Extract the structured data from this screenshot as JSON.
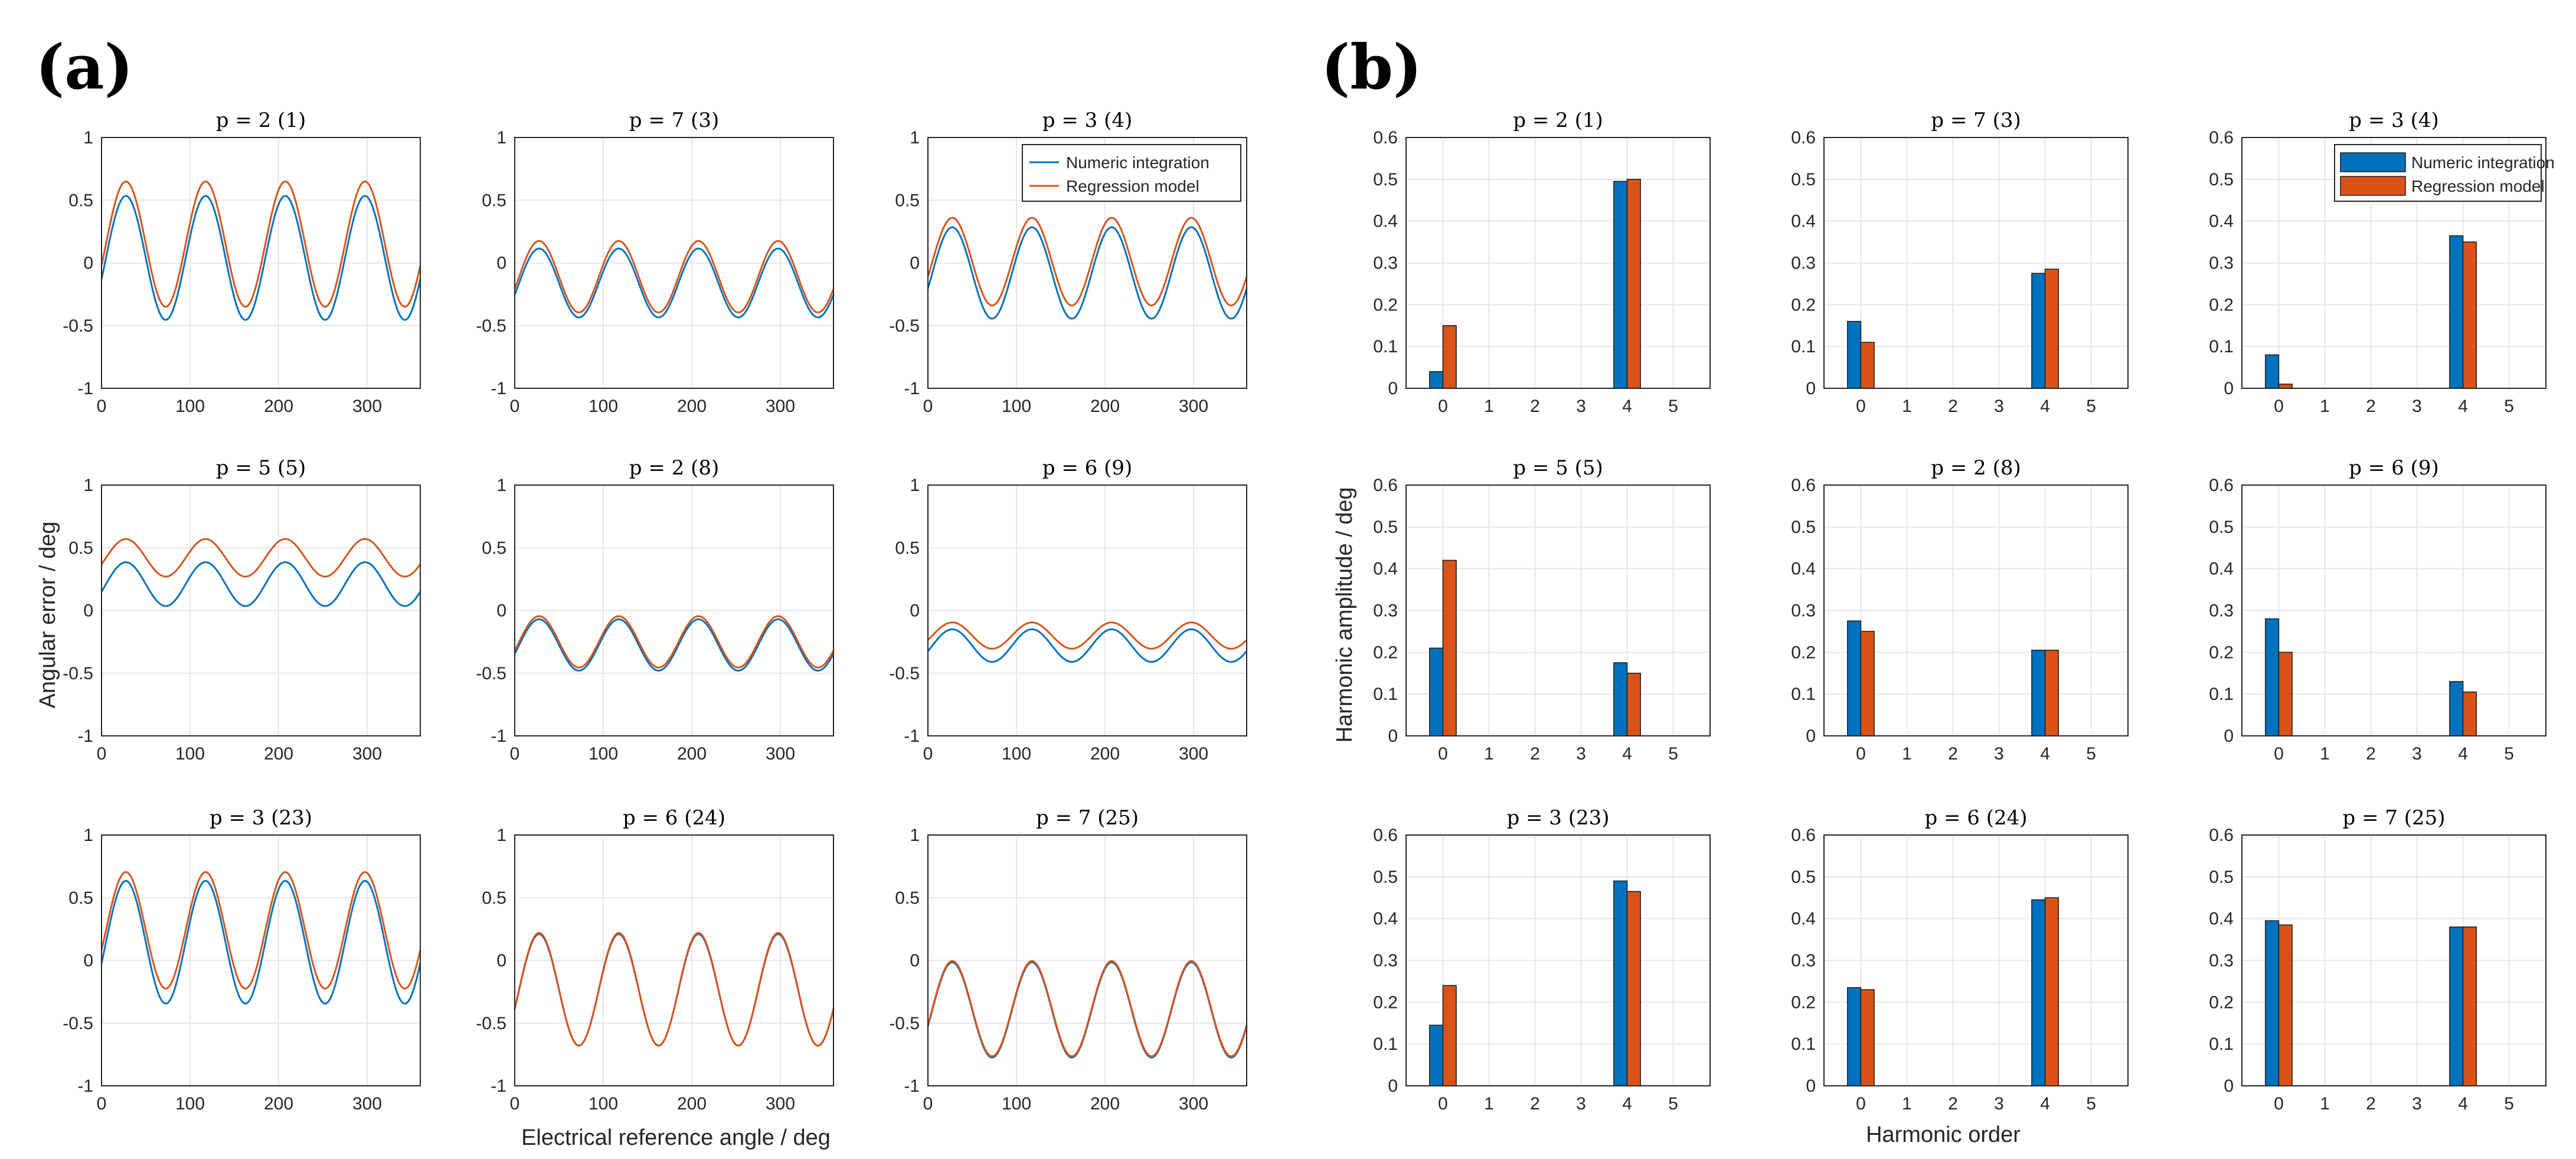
{
  "panel_labels": {
    "a": "(a)",
    "b": "(b)"
  },
  "colors": {
    "numeric": "#0072BD",
    "regression": "#D95319"
  },
  "legend": [
    "Numeric integration",
    "Regression model"
  ],
  "labels": {
    "a_xlabel": "Electrical reference angle / deg",
    "a_ylabel": "Angular error / deg",
    "b_xlabel": "Harmonic order",
    "b_ylabel": "Harmonic amplitude / deg"
  },
  "chart_data": [
    {
      "panel": "a",
      "type": "line",
      "xlim": [
        0,
        360
      ],
      "ylim": [
        -1,
        1
      ],
      "xticks": [
        0,
        100,
        200,
        300
      ],
      "yticks": [
        -1,
        -0.5,
        0,
        0.5,
        1
      ],
      "grid": true,
      "legend_position": "top-right of first subplot",
      "model": "offset + amplitude * sin(4*(x - phase))",
      "subplots": [
        {
          "title": "p = 2 (1)",
          "series": [
            {
              "name": "Numeric integration",
              "offset": 0.04,
              "amplitude": 0.495,
              "phase": 5
            },
            {
              "name": "Regression model",
              "offset": 0.15,
              "amplitude": 0.5,
              "phase": 5
            }
          ]
        },
        {
          "title": "p = 7 (3)",
          "series": [
            {
              "name": "Numeric integration",
              "offset": -0.16,
              "amplitude": 0.275,
              "phase": 5
            },
            {
              "name": "Regression model",
              "offset": -0.11,
              "amplitude": 0.285,
              "phase": 5
            }
          ]
        },
        {
          "title": "p = 3 (4)",
          "series": [
            {
              "name": "Numeric integration",
              "offset": -0.08,
              "amplitude": 0.365,
              "phase": 5
            },
            {
              "name": "Regression model",
              "offset": 0.01,
              "amplitude": 0.35,
              "phase": 5
            }
          ]
        },
        {
          "title": "p = 5 (5)",
          "series": [
            {
              "name": "Numeric integration",
              "offset": 0.21,
              "amplitude": 0.175,
              "phase": 5
            },
            {
              "name": "Regression model",
              "offset": 0.42,
              "amplitude": 0.15,
              "phase": 5
            }
          ]
        },
        {
          "title": "p = 2 (8)",
          "series": [
            {
              "name": "Numeric integration",
              "offset": -0.275,
              "amplitude": 0.205,
              "phase": 5
            },
            {
              "name": "Regression model",
              "offset": -0.25,
              "amplitude": 0.205,
              "phase": 5
            }
          ]
        },
        {
          "title": "p = 6 (9)",
          "series": [
            {
              "name": "Numeric integration",
              "offset": -0.28,
              "amplitude": 0.13,
              "phase": 5
            },
            {
              "name": "Regression model",
              "offset": -0.2,
              "amplitude": 0.105,
              "phase": 5
            }
          ]
        },
        {
          "title": "p = 3 (23)",
          "series": [
            {
              "name": "Numeric integration",
              "offset": 0.145,
              "amplitude": 0.49,
              "phase": 5
            },
            {
              "name": "Regression model",
              "offset": 0.24,
              "amplitude": 0.465,
              "phase": 5
            }
          ]
        },
        {
          "title": "p = 6 (24)",
          "series": [
            {
              "name": "Numeric integration",
              "offset": -0.235,
              "amplitude": 0.445,
              "phase": 5
            },
            {
              "name": "Regression model",
              "offset": -0.23,
              "amplitude": 0.45,
              "phase": 5
            }
          ]
        },
        {
          "title": "p = 7 (25)",
          "series": [
            {
              "name": "Numeric integration",
              "offset": -0.395,
              "amplitude": 0.38,
              "phase": 5
            },
            {
              "name": "Regression model",
              "offset": -0.385,
              "amplitude": 0.38,
              "phase": 5
            }
          ]
        }
      ]
    },
    {
      "panel": "b",
      "type": "bar",
      "categories": [
        0,
        1,
        2,
        3,
        4,
        5
      ],
      "ylim": [
        0,
        0.6
      ],
      "yticks": [
        0,
        0.1,
        0.2,
        0.3,
        0.4,
        0.5,
        0.6
      ],
      "grid": true,
      "legend_position": "top-right of third subplot",
      "subplots": [
        {
          "title": "p = 2 (1)",
          "series": [
            {
              "name": "Numeric integration",
              "values": [
                0.04,
                0,
                0,
                0,
                0.495,
                0
              ]
            },
            {
              "name": "Regression model",
              "values": [
                0.15,
                0,
                0,
                0,
                0.5,
                0
              ]
            }
          ]
        },
        {
          "title": "p = 7 (3)",
          "series": [
            {
              "name": "Numeric integration",
              "values": [
                0.16,
                0,
                0,
                0,
                0.275,
                0
              ]
            },
            {
              "name": "Regression model",
              "values": [
                0.11,
                0,
                0,
                0,
                0.285,
                0
              ]
            }
          ]
        },
        {
          "title": "p = 3 (4)",
          "series": [
            {
              "name": "Numeric integration",
              "values": [
                0.08,
                0,
                0,
                0,
                0.365,
                0
              ]
            },
            {
              "name": "Regression model",
              "values": [
                0.01,
                0,
                0,
                0,
                0.35,
                0
              ]
            }
          ]
        },
        {
          "title": "p = 5 (5)",
          "series": [
            {
              "name": "Numeric integration",
              "values": [
                0.21,
                0,
                0,
                0,
                0.175,
                0
              ]
            },
            {
              "name": "Regression model",
              "values": [
                0.42,
                0,
                0,
                0,
                0.15,
                0
              ]
            }
          ]
        },
        {
          "title": "p = 2 (8)",
          "series": [
            {
              "name": "Numeric integration",
              "values": [
                0.275,
                0,
                0,
                0,
                0.205,
                0
              ]
            },
            {
              "name": "Regression model",
              "values": [
                0.25,
                0,
                0,
                0,
                0.205,
                0
              ]
            }
          ]
        },
        {
          "title": "p = 6 (9)",
          "series": [
            {
              "name": "Numeric integration",
              "values": [
                0.28,
                0,
                0,
                0,
                0.13,
                0
              ]
            },
            {
              "name": "Regression model",
              "values": [
                0.2,
                0,
                0,
                0,
                0.105,
                0
              ]
            }
          ]
        },
        {
          "title": "p = 3 (23)",
          "series": [
            {
              "name": "Numeric integration",
              "values": [
                0.145,
                0,
                0,
                0,
                0.49,
                0
              ]
            },
            {
              "name": "Regression model",
              "values": [
                0.24,
                0,
                0,
                0,
                0.465,
                0
              ]
            }
          ]
        },
        {
          "title": "p = 6 (24)",
          "series": [
            {
              "name": "Numeric integration",
              "values": [
                0.235,
                0,
                0,
                0,
                0.445,
                0
              ]
            },
            {
              "name": "Regression model",
              "values": [
                0.23,
                0,
                0,
                0,
                0.45,
                0
              ]
            }
          ]
        },
        {
          "title": "p = 7 (25)",
          "series": [
            {
              "name": "Numeric integration",
              "values": [
                0.395,
                0,
                0,
                0,
                0.38,
                0
              ]
            },
            {
              "name": "Regression model",
              "values": [
                0.385,
                0,
                0,
                0,
                0.38,
                0
              ]
            }
          ]
        }
      ]
    }
  ]
}
